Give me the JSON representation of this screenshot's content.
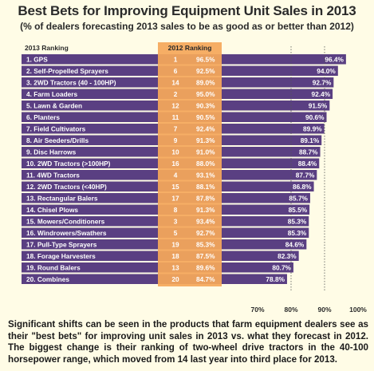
{
  "title": "Best Bets for Improving Equipment Unit Sales in 2013",
  "subtitle": "(% of dealers forecasting 2013 sales to be as good as or better than 2012)",
  "caption": "Significant shifts can be seen in the products that farm equipment dealers see as their \"best bets\" for improving unit sales in 2013 vs. what they forecast in 2012. The biggest change is their ranking of two-wheel drive tractors in the 40-100 horsepower range, which moved from 14 last year into third place for 2013.",
  "colors": {
    "bar": "#5a3f82",
    "highlight": "#f5a85a",
    "background": "#fffce6"
  },
  "chart_data": {
    "type": "bar",
    "orientation": "horizontal",
    "col_2013_label": "2013 Ranking",
    "col_2012_label": "2012 Ranking",
    "xlim": [
      60,
      100
    ],
    "x_ticks": [
      "70%",
      "80%",
      "90%",
      "100%"
    ],
    "x_tick_values": [
      70,
      80,
      90,
      100
    ],
    "grid": "dotted vertical lines at 80% and 90%",
    "rows": [
      {
        "label": "1. GPS",
        "rank2012": "1",
        "pct2012": "96.5%",
        "value": 96.4,
        "value_label": "96.4%"
      },
      {
        "label": "2. Self-Propelled Sprayers",
        "rank2012": "6",
        "pct2012": "92.5%",
        "value": 94.0,
        "value_label": "94.0%"
      },
      {
        "label": "3. 2WD Tractors (40 - 100HP)",
        "rank2012": "14",
        "pct2012": "89.0%",
        "value": 92.7,
        "value_label": "92.7%"
      },
      {
        "label": "4. Farm Loaders",
        "rank2012": "2",
        "pct2012": "95.0%",
        "value": 92.4,
        "value_label": "92.4%"
      },
      {
        "label": "5. Lawn & Garden",
        "rank2012": "12",
        "pct2012": "90.3%",
        "value": 91.5,
        "value_label": "91.5%"
      },
      {
        "label": "6. Planters",
        "rank2012": "11",
        "pct2012": "90.5%",
        "value": 90.6,
        "value_label": "90.6%"
      },
      {
        "label": "7. Field Cultivators",
        "rank2012": "7",
        "pct2012": "92.4%",
        "value": 89.9,
        "value_label": "89.9%"
      },
      {
        "label": "8. Air Seeders/Drills",
        "rank2012": "9",
        "pct2012": "91.3%",
        "value": 89.1,
        "value_label": "89.1%"
      },
      {
        "label": "9. Disc Harrows",
        "rank2012": "10",
        "pct2012": "91.0%",
        "value": 88.7,
        "value_label": "88.7%"
      },
      {
        "label": "10. 2WD Tractors (>100HP)",
        "rank2012": "16",
        "pct2012": "88.0%",
        "value": 88.4,
        "value_label": "88.4%"
      },
      {
        "label": "11. 4WD Tractors",
        "rank2012": "4",
        "pct2012": "93.1%",
        "value": 87.7,
        "value_label": "87.7%"
      },
      {
        "label": "12. 2WD Tractors (<40HP)",
        "rank2012": "15",
        "pct2012": "88.1%",
        "value": 86.8,
        "value_label": "86.8%"
      },
      {
        "label": "13. Rectangular Balers",
        "rank2012": "17",
        "pct2012": "87.8%",
        "value": 85.7,
        "value_label": "85.7%"
      },
      {
        "label": "14. Chisel Plows",
        "rank2012": "8",
        "pct2012": "91.3%",
        "value": 85.5,
        "value_label": "85.5%"
      },
      {
        "label": "15. Mowers/Conditioners",
        "rank2012": "3",
        "pct2012": "93.4%",
        "value": 85.3,
        "value_label": "85.3%"
      },
      {
        "label": "16. Windrowers/Swathers",
        "rank2012": "5",
        "pct2012": "92.7%",
        "value": 85.3,
        "value_label": "85.3%"
      },
      {
        "label": "17. Pull-Type Sprayers",
        "rank2012": "19",
        "pct2012": "85.3%",
        "value": 84.6,
        "value_label": "84.6%"
      },
      {
        "label": "18. Forage Harvesters",
        "rank2012": "18",
        "pct2012": "87.5%",
        "value": 82.3,
        "value_label": "82.3%"
      },
      {
        "label": "19. Round Balers",
        "rank2012": "13",
        "pct2012": "89.6%",
        "value": 80.7,
        "value_label": "80.7%"
      },
      {
        "label": "20. Combines",
        "rank2012": "20",
        "pct2012": "84.7%",
        "value": 78.8,
        "value_label": "78.8%"
      }
    ]
  }
}
